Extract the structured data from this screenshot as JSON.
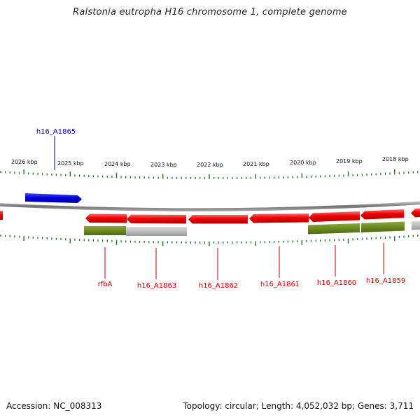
{
  "title": "Ralstonia eutropha H16 chromosome 1, complete genome",
  "footer": {
    "accession": "Accession: NC_008313",
    "summary": "Topology: circular; Length: 4,052,032 bp; Genes: 3,711"
  },
  "ruler": {
    "labels": [
      "2026 kbp",
      "2025 kbp",
      "2024 kbp",
      "2023 kbp",
      "2022 kbp",
      "2021 kbp",
      "2020 kbp",
      "2019 kbp",
      "2018 kbp"
    ]
  },
  "colors": {
    "forward_gene": "#0000dd",
    "reverse_gene": "#ee0000",
    "forward_label": "#0000aa",
    "reverse_label": "#cc0000",
    "feature_green": "#6b8a1e",
    "feature_gray": "#bdbdbd",
    "backbone": "#808080",
    "tick": "#1a7a1a"
  },
  "genes": {
    "forward": [
      {
        "name": "h16_A1865"
      }
    ],
    "reverse": [
      {
        "name": "rfbA"
      },
      {
        "name": "h16_A1863"
      },
      {
        "name": "h16_A1862"
      },
      {
        "name": "h16_A1861"
      },
      {
        "name": "h16_A1860"
      },
      {
        "name": "h16_A1859"
      }
    ]
  }
}
